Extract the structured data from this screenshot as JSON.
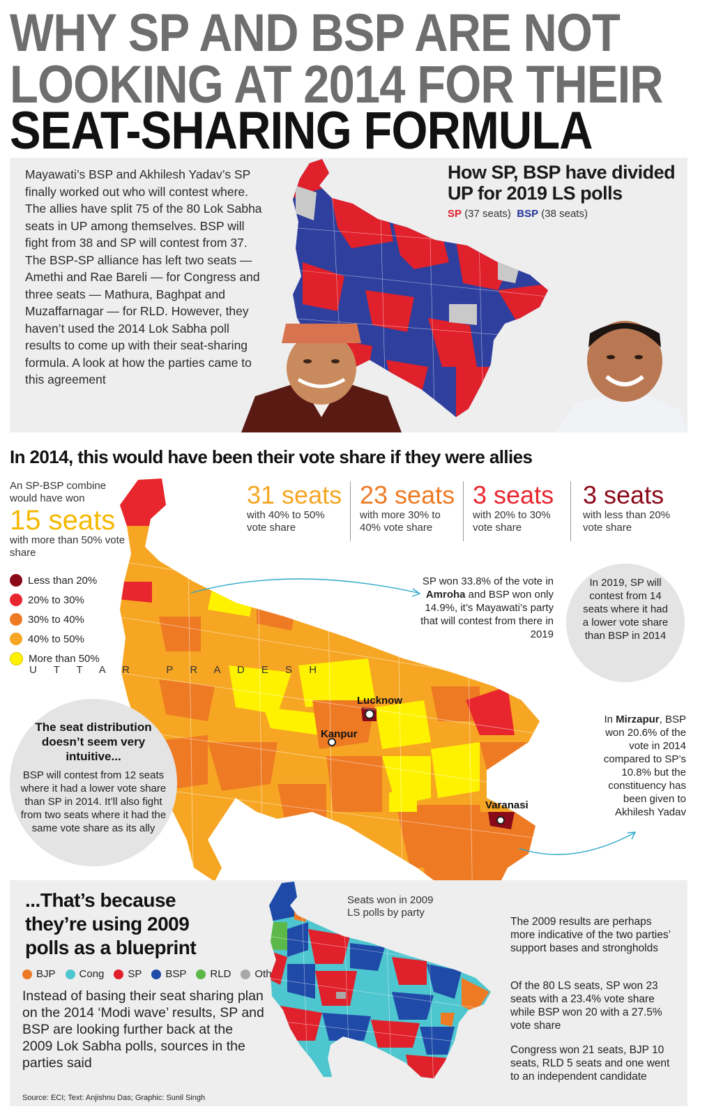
{
  "headline": {
    "line1": "WHY SP AND BSP ARE NOT",
    "line2": "LOOKING AT 2014 FOR THEIR",
    "line3": "SEAT-SHARING FORMULA"
  },
  "intro": {
    "text": "Mayawati’s BSP and Akhilesh Yadav’s SP finally worked out who will contest where. The allies have split 75 of the 80 Lok Sabha seats in UP among themselves. BSP will fight from 38 and SP will contest from 37. The BSP-SP alliance has left two seats —Amethi and Rae Bareli — for Congress and three seats — Mathura, Baghpat and Muzaffarnagar — for RLD. However, they haven’t used the 2014 Lok Sabha poll results to come up with their seat-sharing formula. A look at how the parties came to this agreement"
  },
  "map2019": {
    "title": "How SP, BSP have divided UP for 2019 LS polls",
    "sp_label": "SP",
    "sp_seats": "(37 seats)",
    "bsp_label": "BSP",
    "bsp_seats": "(38 seats)"
  },
  "section2": {
    "heading": "In 2014, this would have been their vote share if they were allies",
    "combine_note": "An SP-BSP combine would have won",
    "big_seats": "15 seats",
    "big_desc": "with more than 50% vote share",
    "stats": [
      {
        "num": "31 seats",
        "desc": "with 40% to 50% vote share"
      },
      {
        "num": "23 seats",
        "desc": "with more 30% to 40% vote share"
      },
      {
        "num": "3 seats",
        "desc": "with 20% to 30% vote share"
      },
      {
        "num": "3 seats",
        "desc": "with less than 20% vote share"
      }
    ],
    "legend": [
      {
        "label": "Less than 20%",
        "color": "#8b0a1a"
      },
      {
        "label": "20% to 30%",
        "color": "#e8262e"
      },
      {
        "label": "30% to 40%",
        "color": "#ee7a24"
      },
      {
        "label": "40% to 50%",
        "color": "#f6a623"
      },
      {
        "label": "More than 50%",
        "color": "#fff200"
      }
    ],
    "state_label": "U T T A R   P R A D E S H",
    "cities": {
      "lucknow": "Lucknow",
      "kanpur": "Kanpur",
      "varanasi": "Varanasi"
    },
    "amroha_note": {
      "pre": "SP won 33.8% of the vote in ",
      "bold": "Amroha",
      "post": " and BSP won only 14.9%, it’s Mayawati’s party that will contest from there in 2019"
    },
    "circle_2019": "In 2019, SP will contest from 14 seats where it had a lower vote share than BSP in 2014",
    "seat_dist": {
      "title": "The seat distribution doesn’t seem very intuitive...",
      "body": "BSP will contest from 12 seats where it had a lower vote share than SP in 2014. It’ll also fight from two seats where it had the same vote share as its ally"
    },
    "mirzapur": {
      "pre": "In ",
      "bold": "Mirzapur",
      "post": ", BSP won 20.6% of the vote in 2014 compared to SP’s 10.8% but the constituency has been given to Akhilesh Yadav"
    }
  },
  "section3": {
    "title": "...That’s because they’re using 2009 polls as a blueprint",
    "legend": [
      {
        "label": "BJP",
        "color": "#ee7a24"
      },
      {
        "label": "Cong",
        "color": "#4ec6cf"
      },
      {
        "label": "SP",
        "color": "#e0202a"
      },
      {
        "label": "BSP",
        "color": "#1f4aa8"
      },
      {
        "label": "RLD",
        "color": "#5cb848"
      },
      {
        "label": "Oth",
        "color": "#a8a8a8"
      }
    ],
    "text": "Instead of basing their seat sharing plan on the 2014 ‘Modi wave’ results, SP and BSP are looking further back at the 2009 Lok Sabha polls, sources in the parties said",
    "map_label": "Seats won in 2009 LS polls by party",
    "right_p1": "The 2009 results are perhaps more indicative of the two parties’ support bases and strongholds",
    "right_p2": "Of the 80 LS seats, SP won 23 seats with a 23.4% vote share while BSP won 20 with a 27.5% vote share",
    "right_p3": "Congress won 21 seats, BJP 10 seats, RLD 5 seats and one went to an independent candidate",
    "source": "Source: ECI; Text: Anjishnu Das; Graphic: Sunil Singh"
  }
}
